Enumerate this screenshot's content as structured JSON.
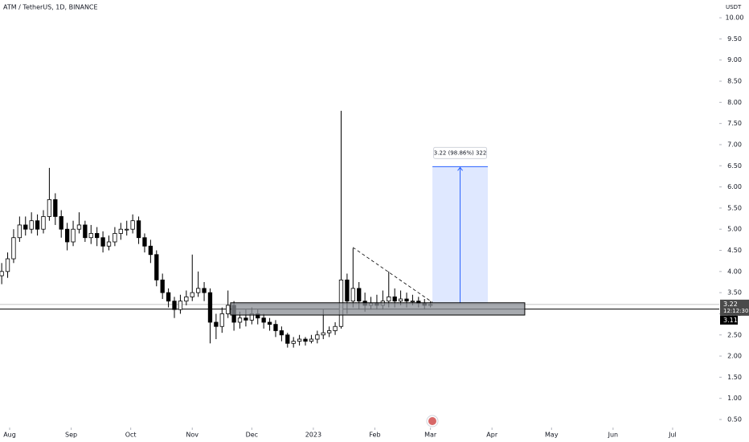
{
  "chart_data": {
    "type": "candlestick",
    "title": "ATM / TetherUS, 1D, BINANCE",
    "y_unit": "USDT",
    "x": [
      -4,
      -1,
      2,
      5,
      8,
      11,
      14,
      17,
      20,
      23,
      26,
      29,
      32,
      35,
      38,
      41,
      44,
      47,
      50,
      53,
      56,
      59,
      62,
      65,
      68,
      71,
      74,
      77,
      80,
      83,
      86,
      89,
      92,
      95,
      98,
      101,
      104,
      107,
      110,
      113,
      116,
      119,
      122,
      125,
      128,
      131,
      134,
      137,
      140,
      143,
      146,
      149,
      152,
      155,
      158,
      161,
      164,
      167,
      170,
      173,
      176,
      179,
      182,
      185,
      188,
      191,
      194,
      197,
      200,
      203,
      206,
      209,
      212
    ],
    "open": [
      3.9,
      4.0,
      4.3,
      4.8,
      5.1,
      5.0,
      5.2,
      5.0,
      5.3,
      5.7,
      5.3,
      5.0,
      4.7,
      5.0,
      5.1,
      4.8,
      4.9,
      4.8,
      4.6,
      4.7,
      4.9,
      5.0,
      5.0,
      5.2,
      4.8,
      4.6,
      4.4,
      3.8,
      3.5,
      3.3,
      3.1,
      3.3,
      3.4,
      3.5,
      3.6,
      3.5,
      2.8,
      2.7,
      3.0,
      3.2,
      2.8,
      2.9,
      2.85,
      3.0,
      2.9,
      2.8,
      2.75,
      2.6,
      2.5,
      2.3,
      2.35,
      2.4,
      2.35,
      2.4,
      2.5,
      2.55,
      2.6,
      2.7,
      3.8,
      3.3,
      3.6,
      3.3,
      3.2,
      3.25,
      3.2,
      3.3,
      3.4,
      3.3,
      3.35,
      3.3,
      3.3,
      3.25,
      3.2
    ],
    "high": [
      4.2,
      4.45,
      5.0,
      5.3,
      5.3,
      5.4,
      5.35,
      5.45,
      6.45,
      5.85,
      5.45,
      5.15,
      5.2,
      5.4,
      5.2,
      5.1,
      5.05,
      4.95,
      4.85,
      5.05,
      5.15,
      5.2,
      5.35,
      5.3,
      4.9,
      4.75,
      4.5,
      3.95,
      3.6,
      3.4,
      3.45,
      3.55,
      4.4,
      4.0,
      3.75,
      3.6,
      3.0,
      3.15,
      3.55,
      3.3,
      3.05,
      3.1,
      3.15,
      3.1,
      3.0,
      2.9,
      2.85,
      2.7,
      2.55,
      2.45,
      2.5,
      2.45,
      2.5,
      2.6,
      3.1,
      2.7,
      2.8,
      7.8,
      3.95,
      4.55,
      3.75,
      3.5,
      3.4,
      3.45,
      3.55,
      4.0,
      3.6,
      3.55,
      3.5,
      3.45,
      3.4,
      3.35,
      3.3
    ],
    "low": [
      3.7,
      3.85,
      4.2,
      4.7,
      4.85,
      4.9,
      4.85,
      4.9,
      5.2,
      5.1,
      4.8,
      4.5,
      4.6,
      4.9,
      4.7,
      4.65,
      4.6,
      4.45,
      4.5,
      4.6,
      4.75,
      4.85,
      4.9,
      4.65,
      4.45,
      4.2,
      3.65,
      3.35,
      3.15,
      2.9,
      3.0,
      3.2,
      3.3,
      3.4,
      3.3,
      2.3,
      2.4,
      2.55,
      2.9,
      2.6,
      2.65,
      2.7,
      2.75,
      2.75,
      2.65,
      2.6,
      2.45,
      2.35,
      2.2,
      2.2,
      2.25,
      2.25,
      2.3,
      2.3,
      2.4,
      2.45,
      2.5,
      2.65,
      3.0,
      3.15,
      3.1,
      3.05,
      3.1,
      3.1,
      3.1,
      3.15,
      3.15,
      3.2,
      3.15,
      3.2,
      3.15,
      3.1,
      3.15
    ],
    "close": [
      4.0,
      4.3,
      4.8,
      5.1,
      5.0,
      5.2,
      5.0,
      5.3,
      5.7,
      5.3,
      5.0,
      4.7,
      5.0,
      5.1,
      4.8,
      4.9,
      4.8,
      4.6,
      4.7,
      4.9,
      5.0,
      5.0,
      5.2,
      4.8,
      4.6,
      4.4,
      3.8,
      3.5,
      3.3,
      3.1,
      3.3,
      3.4,
      3.5,
      3.6,
      3.5,
      2.8,
      2.7,
      3.0,
      3.2,
      2.8,
      2.9,
      2.85,
      3.0,
      2.9,
      2.8,
      2.75,
      2.6,
      2.5,
      2.3,
      2.35,
      2.4,
      2.35,
      2.4,
      2.5,
      2.55,
      2.6,
      2.7,
      3.8,
      3.3,
      3.6,
      3.3,
      3.2,
      3.25,
      3.2,
      3.3,
      3.4,
      3.3,
      3.35,
      3.3,
      3.3,
      3.25,
      3.2,
      3.22
    ],
    "up_color": "#ffffff",
    "down_color": "#000000",
    "xlim": [
      -4.86,
      357.5
    ],
    "xticks": [
      {
        "value": 0,
        "label": "Aug"
      },
      {
        "value": 31,
        "label": "Sep"
      },
      {
        "value": 61,
        "label": "Oct"
      },
      {
        "value": 92,
        "label": "Nov"
      },
      {
        "value": 122,
        "label": "Dec"
      },
      {
        "value": 153,
        "label": "2023"
      },
      {
        "value": 184,
        "label": "Feb"
      },
      {
        "value": 212,
        "label": "Mar"
      },
      {
        "value": 243,
        "label": "Apr"
      },
      {
        "value": 273,
        "label": "May"
      },
      {
        "value": 304,
        "label": "Jun"
      },
      {
        "value": 334,
        "label": "Jul"
      }
    ],
    "ylim": [
      0.31,
      10.42
    ],
    "yticks": [
      {
        "value": 10,
        "label": "10.00"
      },
      {
        "value": 9.5,
        "label": "9.50"
      },
      {
        "value": 9,
        "label": "9.00"
      },
      {
        "value": 8.5,
        "label": "8.50"
      },
      {
        "value": 8,
        "label": "8.00"
      },
      {
        "value": 7.5,
        "label": "7.50"
      },
      {
        "value": 7,
        "label": "7.00"
      },
      {
        "value": 6.5,
        "label": "6.50"
      },
      {
        "value": 6,
        "label": "6.00"
      },
      {
        "value": 5.5,
        "label": "5.50"
      },
      {
        "value": 5,
        "label": "5.00"
      },
      {
        "value": 4.5,
        "label": "4.50"
      },
      {
        "value": 4,
        "label": "4.00"
      },
      {
        "value": 3.5,
        "label": "3.50"
      },
      {
        "value": 3,
        "label": "3.00"
      },
      {
        "value": 2.5,
        "label": "2.50"
      },
      {
        "value": 2,
        "label": "2.00"
      },
      {
        "value": 1.5,
        "label": "1.50"
      },
      {
        "value": 1,
        "label": "1.00"
      },
      {
        "value": 0.5,
        "label": "0.50"
      }
    ],
    "log_scale": false,
    "grid": false,
    "annotations": {
      "zone": {
        "x": [
          111.3,
          259.5
        ],
        "y": [
          2.97,
          3.26
        ],
        "color": "#8a8d94"
      },
      "trendline": {
        "x": [
          172.9,
          213
        ],
        "y": [
          4.57,
          3.27
        ]
      },
      "measure": {
        "x": [
          213,
          240.9
        ],
        "y": [
          3.26,
          6.48
        ],
        "label": "3.22 (98.86%) 322",
        "color": "#2962ff"
      },
      "last_price": {
        "value": 3.22,
        "countdown": "12:12:30",
        "color": "#4a4a4a"
      },
      "level": {
        "value": 3.11,
        "color": "#000000"
      }
    }
  }
}
